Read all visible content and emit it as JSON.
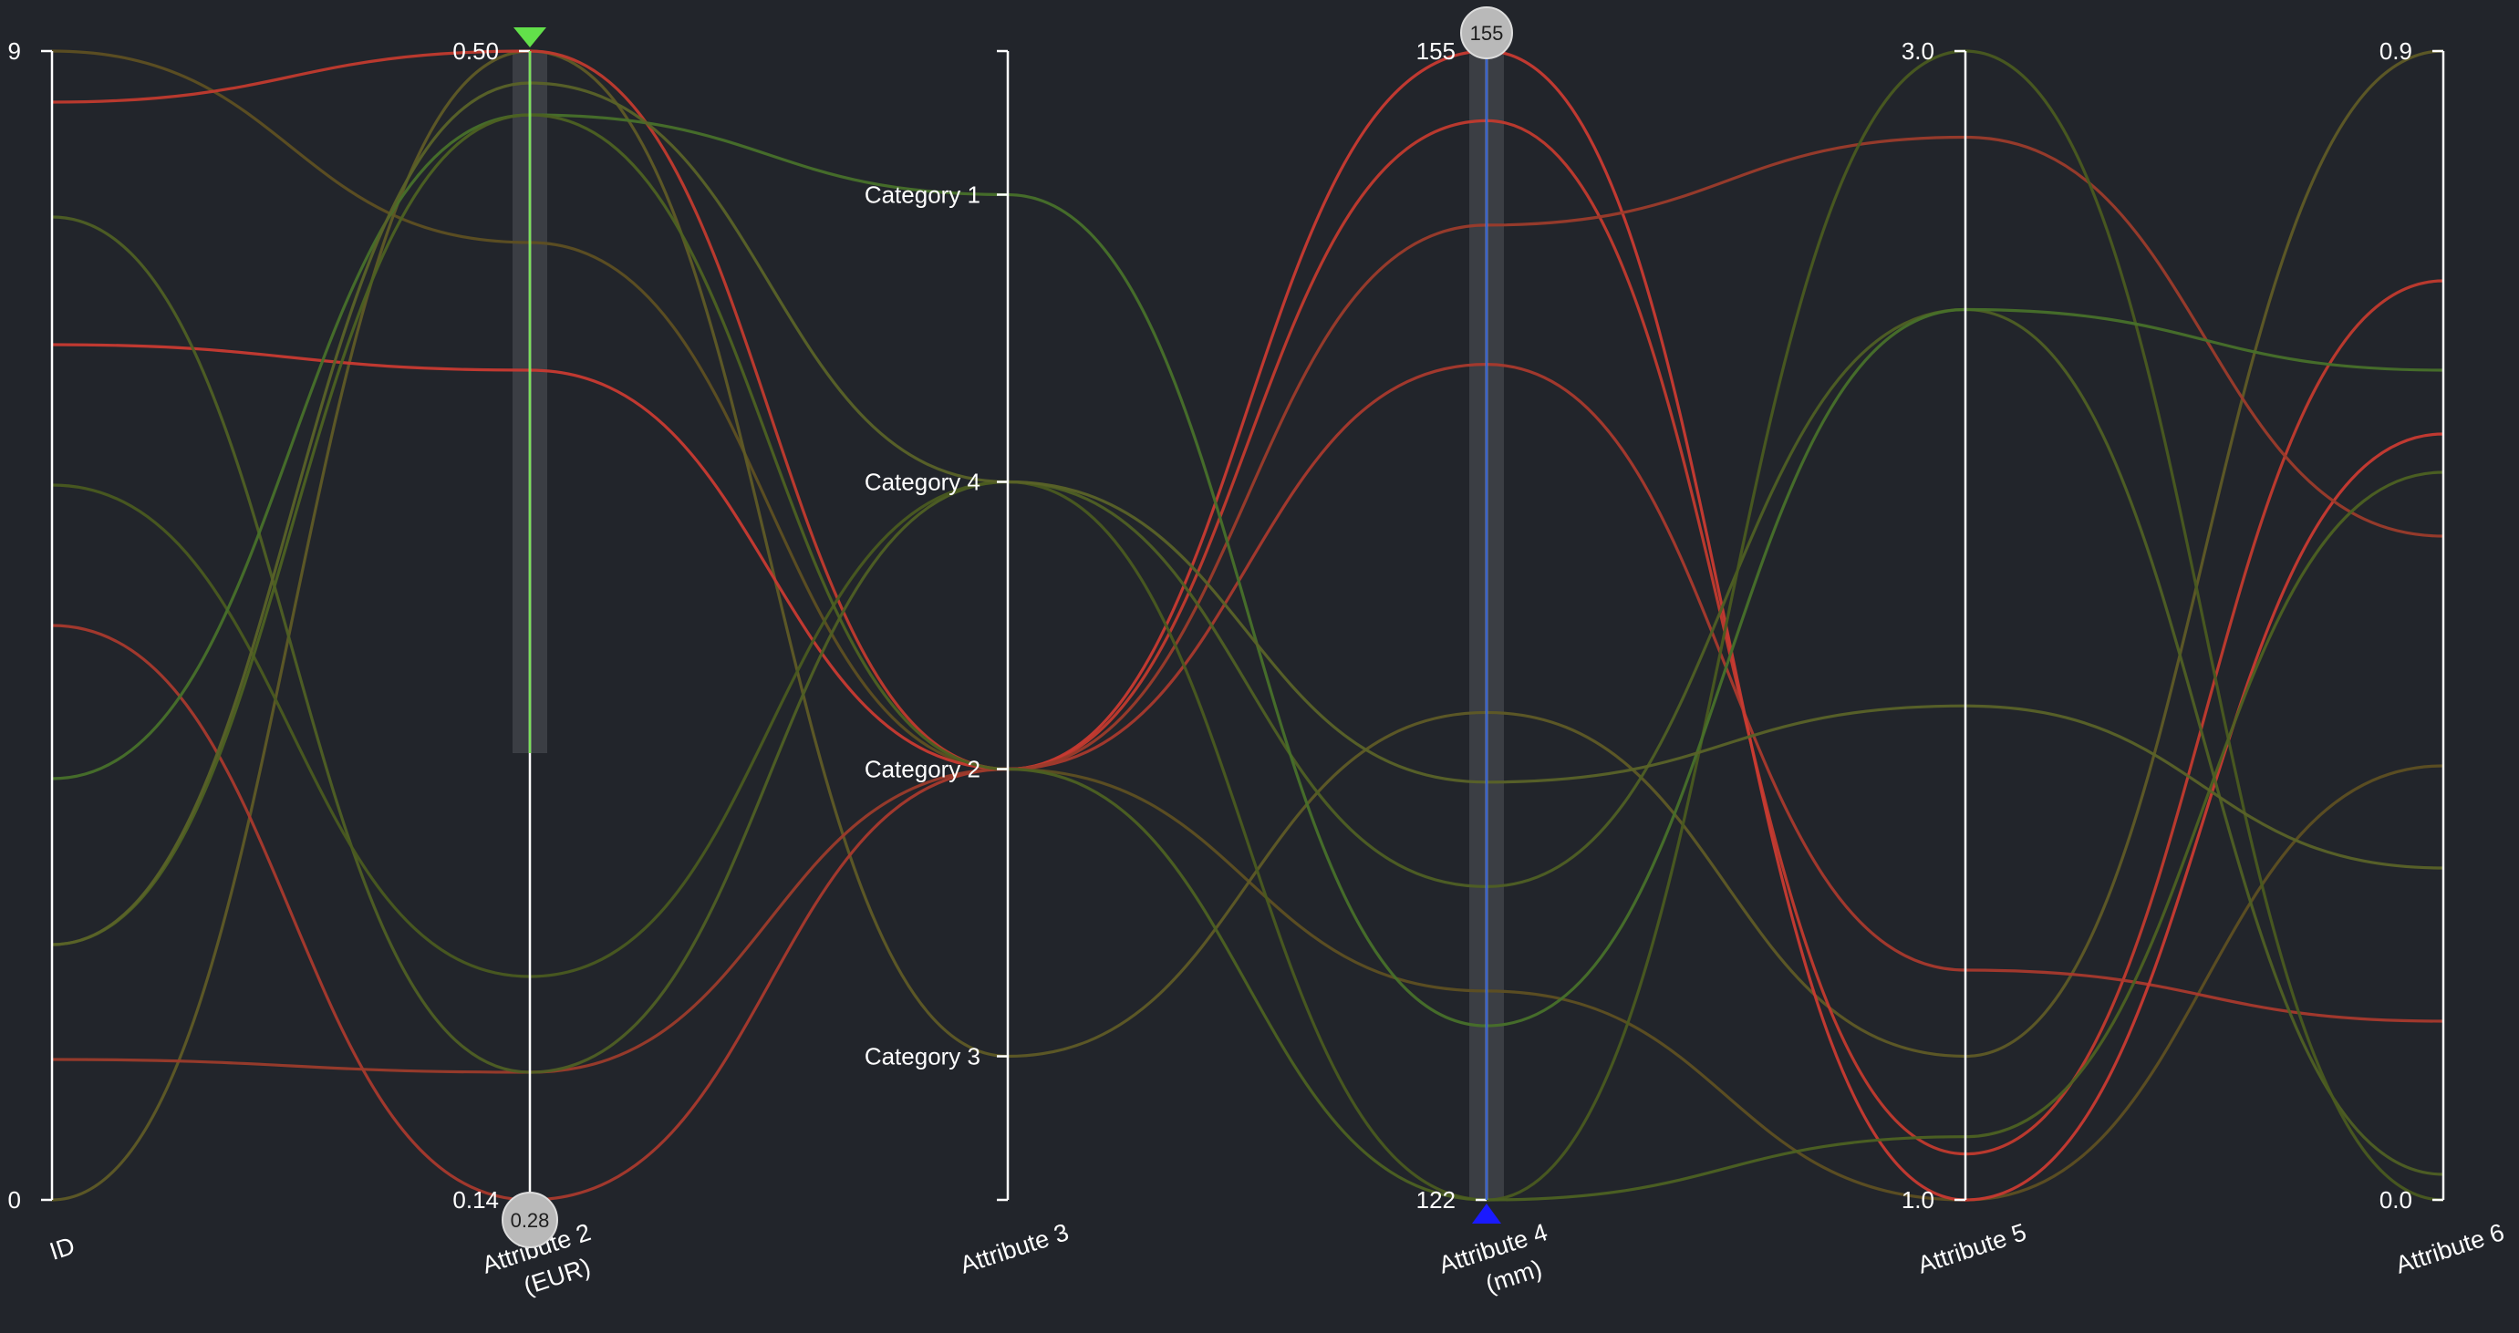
{
  "chart_data": {
    "type": "parallel-coordinates",
    "axes": [
      {
        "name": "ID",
        "unit": "",
        "type": "numeric",
        "min": 0,
        "max": 9,
        "tick_labels": [
          "0",
          "9"
        ]
      },
      {
        "name": "Attribute 2",
        "unit": "(EUR)",
        "type": "numeric",
        "min": 0.14,
        "max": 0.5,
        "tick_labels": [
          "0.14",
          "0.50"
        ],
        "filter": {
          "min": 0.28,
          "max": 0.5,
          "min_label": "0.28"
        }
      },
      {
        "name": "Attribute 3",
        "unit": "",
        "type": "categorical",
        "categories": [
          "Category 3",
          "Category 2",
          "Category 4",
          "Category 1"
        ],
        "tick_labels": [
          "Category 3",
          "Category 2",
          "Category 4",
          "Category 1"
        ]
      },
      {
        "name": "Attribute 4",
        "unit": "(mm)",
        "type": "numeric",
        "min": 122,
        "max": 155,
        "tick_labels": [
          "122",
          "155"
        ],
        "filter": {
          "min": 122,
          "max": 155,
          "max_label": "155"
        }
      },
      {
        "name": "Attribute 5",
        "unit": "",
        "type": "numeric",
        "min": 1.0,
        "max": 3.0,
        "tick_labels": [
          "1.0",
          "3.0"
        ]
      },
      {
        "name": "Attribute 6",
        "unit": "",
        "type": "numeric",
        "min": 0.0,
        "max": 0.9,
        "tick_labels": [
          "0.0",
          "0.9"
        ]
      }
    ],
    "records": [
      {
        "color": "#5e4f22",
        "values": [
          9.0,
          0.44,
          "Category 2",
          128,
          1.0,
          0.34
        ]
      },
      {
        "color": "#5f5a26",
        "values": [
          0.0,
          0.5,
          "Category 3",
          136,
          1.25,
          0.9
        ]
      },
      {
        "color": "#c23a2e",
        "values": [
          8.6,
          0.5,
          "Category 2",
          153,
          1.08,
          0.72
        ]
      },
      {
        "color": "#a9392d",
        "values": [
          4.5,
          0.14,
          "Category 2",
          146,
          1.4,
          0.14
        ]
      },
      {
        "color": "#c93a31",
        "values": [
          6.7,
          0.4,
          "Category 2",
          155,
          1.0,
          0.6
        ]
      },
      {
        "color": "#9c3b2b",
        "values": [
          1.1,
          0.18,
          "Category 2",
          150,
          2.85,
          0.52
        ]
      },
      {
        "color": "#4f5f24",
        "values": [
          7.7,
          0.18,
          "Category 4",
          131,
          2.55,
          0.02
        ]
      },
      {
        "color": "#4a5a20",
        "values": [
          5.6,
          0.21,
          "Category 4",
          122,
          3.0,
          0.0
        ]
      },
      {
        "color": "#48702a",
        "values": [
          3.3,
          0.48,
          "Category 1",
          127,
          2.55,
          0.65
        ]
      },
      {
        "color": "#4d6122",
        "values": [
          2.0,
          0.48,
          "Category 2",
          122,
          1.11,
          0.57
        ]
      },
      {
        "color": "#5a6228",
        "values": [
          2.0,
          0.49,
          "Category 4",
          134,
          1.86,
          0.26
        ]
      }
    ]
  }
}
